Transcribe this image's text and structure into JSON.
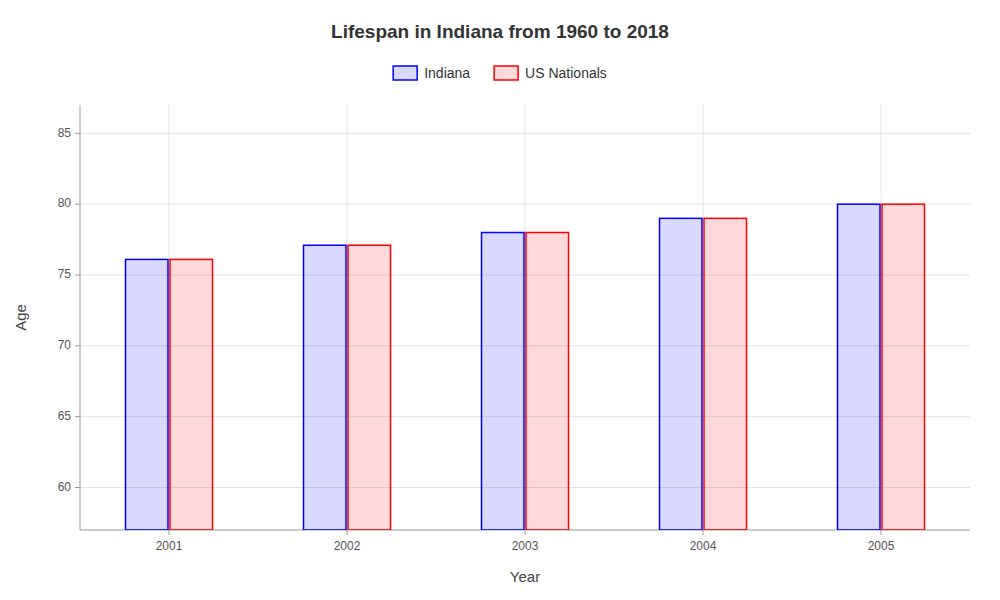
{
  "chart_data": {
    "type": "bar",
    "title": "Lifespan in Indiana from 1960 to 2018",
    "xlabel": "Year",
    "ylabel": "Age",
    "categories": [
      "2001",
      "2002",
      "2003",
      "2004",
      "2005"
    ],
    "series": [
      {
        "name": "Indiana",
        "color": "#0000ff",
        "values": [
          76.1,
          77.1,
          78.0,
          79.0,
          80.0
        ]
      },
      {
        "name": "US Nationals",
        "color": "#ff0000",
        "values": [
          76.1,
          77.1,
          78.0,
          79.0,
          80.0
        ]
      }
    ],
    "ylim": [
      57,
      87
    ],
    "yticks": [
      60,
      65,
      70,
      75,
      80,
      85
    ],
    "grid": true,
    "legend": "top"
  }
}
